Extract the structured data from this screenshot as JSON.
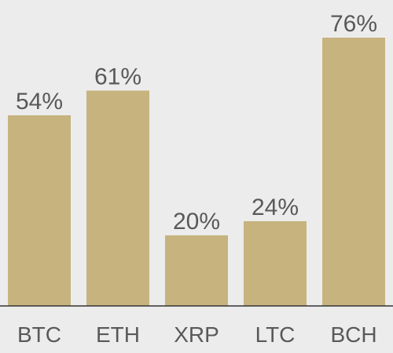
{
  "chart_data": {
    "type": "bar",
    "categories": [
      "BTC",
      "ETH",
      "XRP",
      "LTC",
      "BCH"
    ],
    "values": [
      54,
      61,
      20,
      24,
      76
    ],
    "value_labels": [
      "54%",
      "61%",
      "20%",
      "24%",
      "76%"
    ],
    "title": "",
    "xlabel": "",
    "ylabel": "",
    "ylim": [
      0,
      76
    ],
    "grid": false,
    "legend": "none",
    "colors": {
      "bar": "#c6b37e",
      "text": "#595959",
      "axis": "#333333",
      "background": "#ececec"
    }
  }
}
